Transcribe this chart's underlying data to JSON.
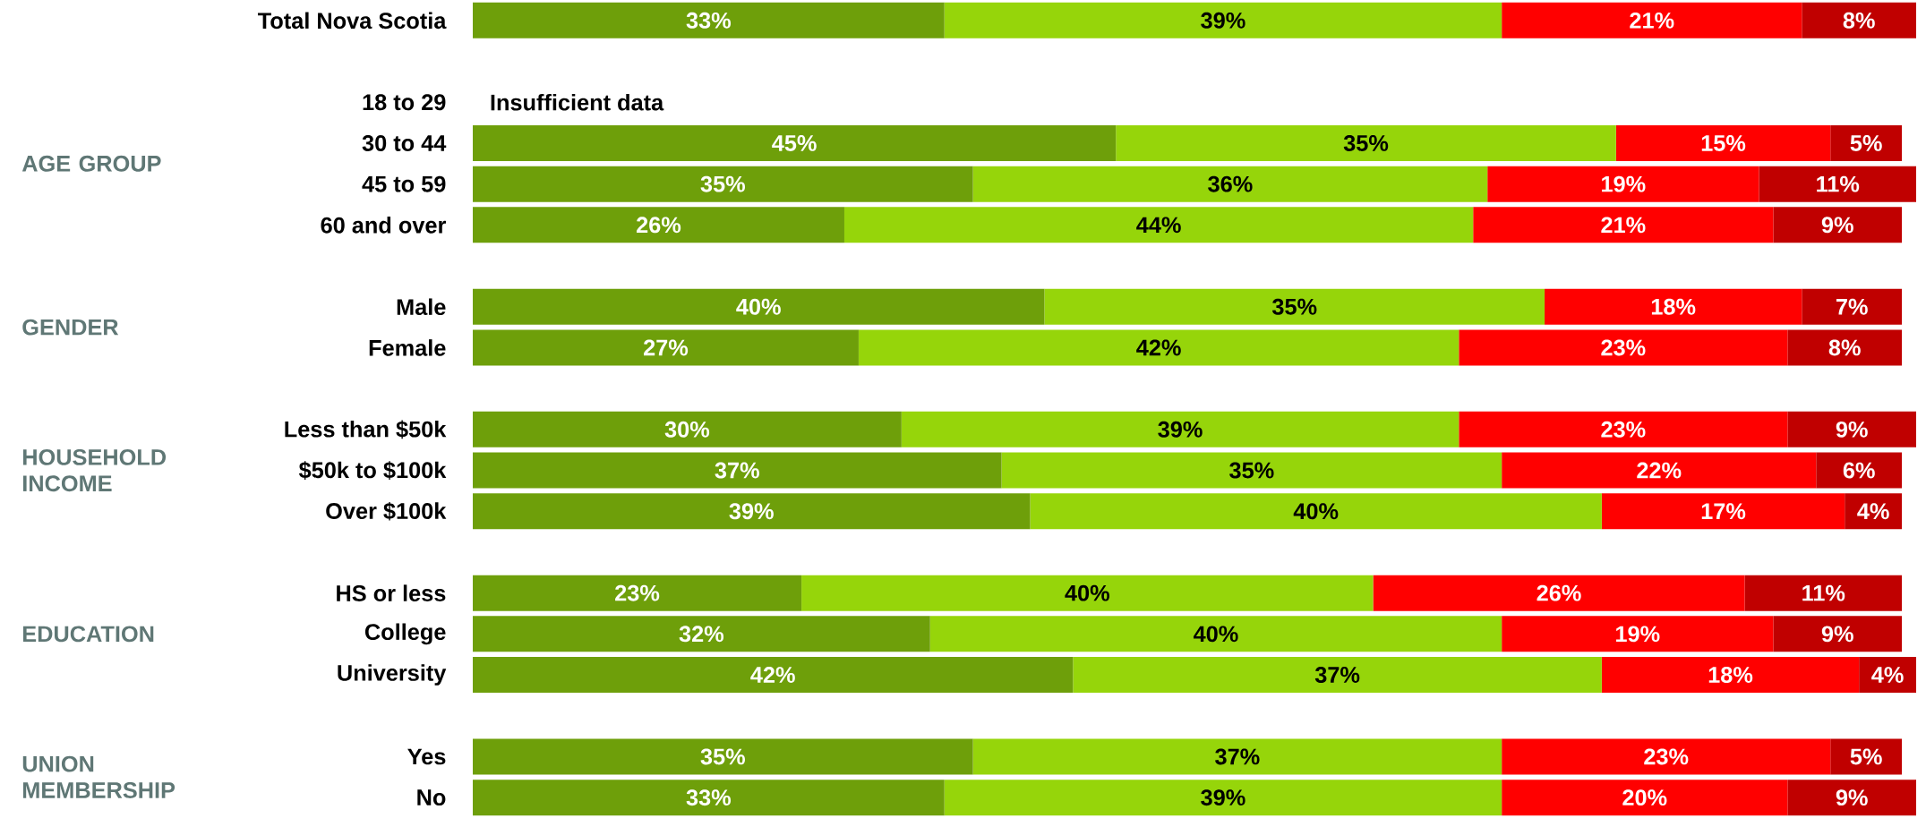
{
  "chart_data": {
    "type": "bar",
    "orientation": "horizontal",
    "stacked": true,
    "categories": [
      "Total Nova Scotia",
      null,
      "18 to 29",
      "30 to 44",
      "45 to 59",
      "60 and over",
      null,
      "Male",
      "Female",
      null,
      "Less than $50k",
      "$50k to $100k",
      "Over $100k",
      null,
      "HS or less",
      "College",
      "University",
      null,
      "Yes",
      "No"
    ],
    "series": [
      {
        "color": "#6e9f0a",
        "values": [
          33,
          null,
          null,
          45,
          35,
          26,
          null,
          40,
          27,
          null,
          30,
          37,
          39,
          null,
          23,
          32,
          42,
          null,
          35,
          33
        ],
        "value_labels": [
          "33%",
          null,
          null,
          "45%",
          "35%",
          "26%",
          null,
          "40%",
          "27%",
          null,
          "30%",
          "37%",
          "39%",
          null,
          "23%",
          "32%",
          "42%",
          null,
          "35%",
          "33%"
        ]
      },
      {
        "color": "#96d50a",
        "values": [
          39,
          null,
          null,
          35,
          36,
          44,
          null,
          35,
          42,
          null,
          39,
          35,
          40,
          null,
          40,
          40,
          37,
          null,
          37,
          39
        ],
        "value_labels": [
          "39%",
          null,
          null,
          "35%",
          "36%",
          "44%",
          null,
          "35%",
          "42%",
          null,
          "39%",
          "35%",
          "40%",
          null,
          "40%",
          "40%",
          "37%",
          null,
          "37%",
          "39%"
        ]
      },
      {
        "color": "#ff0000",
        "values": [
          21,
          null,
          null,
          15,
          19,
          21,
          null,
          18,
          23,
          null,
          23,
          22,
          17,
          null,
          26,
          19,
          18,
          null,
          23,
          20
        ],
        "value_labels": [
          "21%",
          null,
          null,
          "15%",
          "19%",
          "21%",
          null,
          "18%",
          "23%",
          null,
          "23%",
          "22%",
          "17%",
          null,
          "26%",
          "19%",
          "18%",
          null,
          "23%",
          "20%"
        ]
      },
      {
        "color": "#c00000",
        "values": [
          8,
          null,
          null,
          5,
          11,
          9,
          null,
          7,
          8,
          null,
          9,
          6,
          4,
          null,
          11,
          9,
          4,
          null,
          5,
          9
        ],
        "value_labels": [
          "8%",
          null,
          null,
          "5%",
          "11%",
          "9%",
          null,
          "7%",
          "8%",
          null,
          "9%",
          "6%",
          "4%",
          null,
          "11%",
          "9%",
          "4%",
          null,
          "5%",
          "9%"
        ]
      }
    ],
    "annotations": [
      "Insufficient data",
      "AGE GROUP",
      "GENDER",
      "HOUSEHOLD INCOME",
      "EDUCATION",
      "UNION MEMBERSHIP"
    ]
  }
}
